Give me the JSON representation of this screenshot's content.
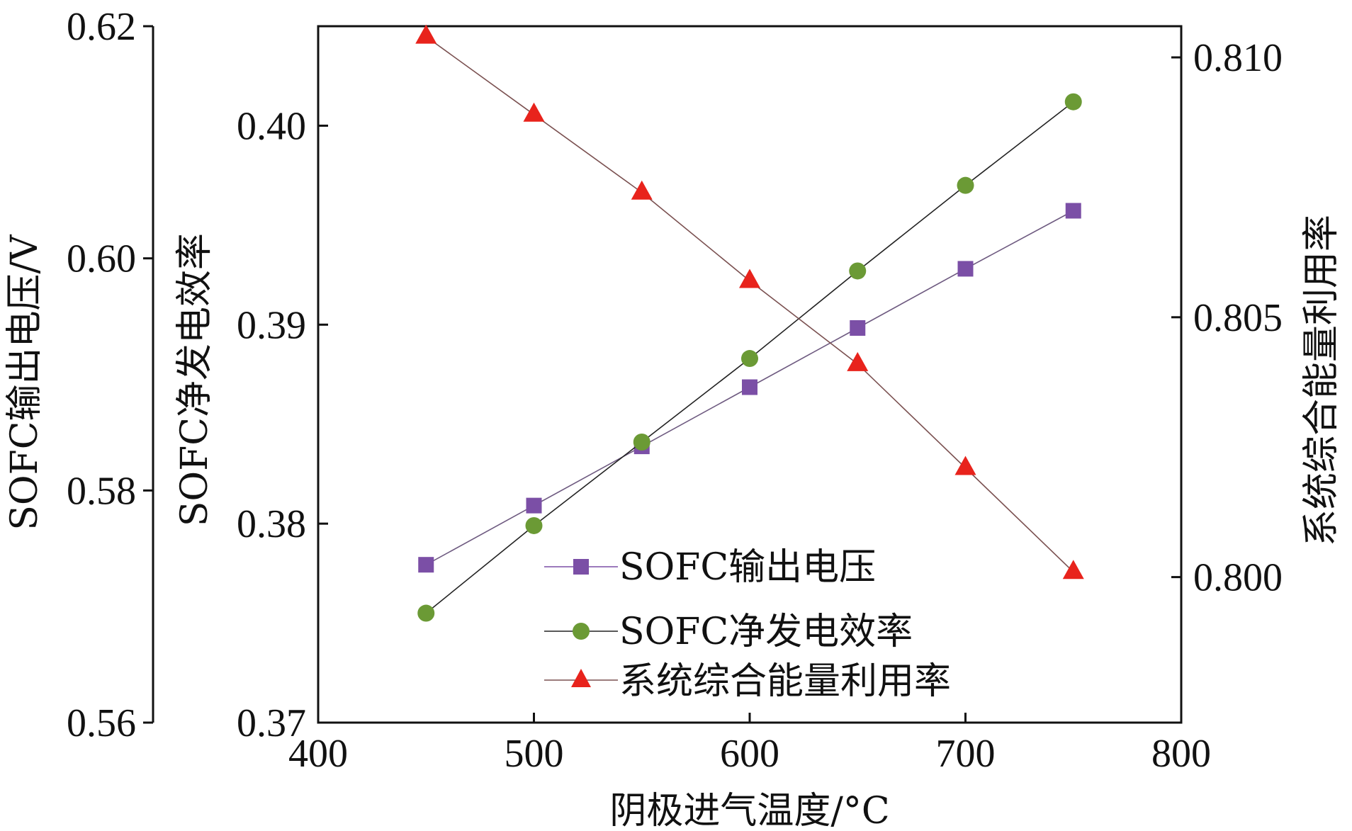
{
  "chart_data": {
    "type": "line",
    "title": "",
    "xlabel": "阴极进气温度/°C",
    "x_ticks": [
      "400",
      "500",
      "600",
      "700",
      "800"
    ],
    "xlim": [
      400,
      800
    ],
    "x": [
      450,
      500,
      550,
      600,
      650,
      700,
      750
    ],
    "axes": {
      "left_outer": {
        "label": "SOFC输出电压/V",
        "ylim": [
          0.56,
          0.62
        ],
        "ticks": [
          "0.56",
          "0.58",
          "0.60",
          "0.62"
        ]
      },
      "left_inner": {
        "label": "SOFC净发电效率",
        "ylim": [
          0.37,
          0.405
        ],
        "ticks": [
          "0.37",
          "0.38",
          "0.39",
          "0.40"
        ]
      },
      "right": {
        "label": "系统综合能量利用率",
        "ylim": [
          0.7972,
          0.8106
        ],
        "ticks": [
          "0.800",
          "0.805",
          "0.810"
        ]
      }
    },
    "series": [
      {
        "name": "SOFC输出电压",
        "axis": "left_outer",
        "marker": "square",
        "color": "#7b4fa6",
        "values": [
          0.5736,
          0.5787,
          0.5838,
          0.5889,
          0.594,
          0.5991,
          0.6041
        ]
      },
      {
        "name": "SOFC净发电效率",
        "axis": "left_inner",
        "marker": "circle",
        "color": "#6b9a35",
        "values": [
          0.3755,
          0.3799,
          0.3841,
          0.3883,
          0.3927,
          0.397,
          0.4012
        ]
      },
      {
        "name": "系统综合能量利用率",
        "axis": "right",
        "marker": "triangle",
        "color": "#e8231c",
        "values": [
          0.8104,
          0.8089,
          0.8074,
          0.8057,
          0.8041,
          0.8021,
          0.8001
        ]
      }
    ],
    "legend": {
      "position": "bottom-center"
    },
    "grid": false
  }
}
